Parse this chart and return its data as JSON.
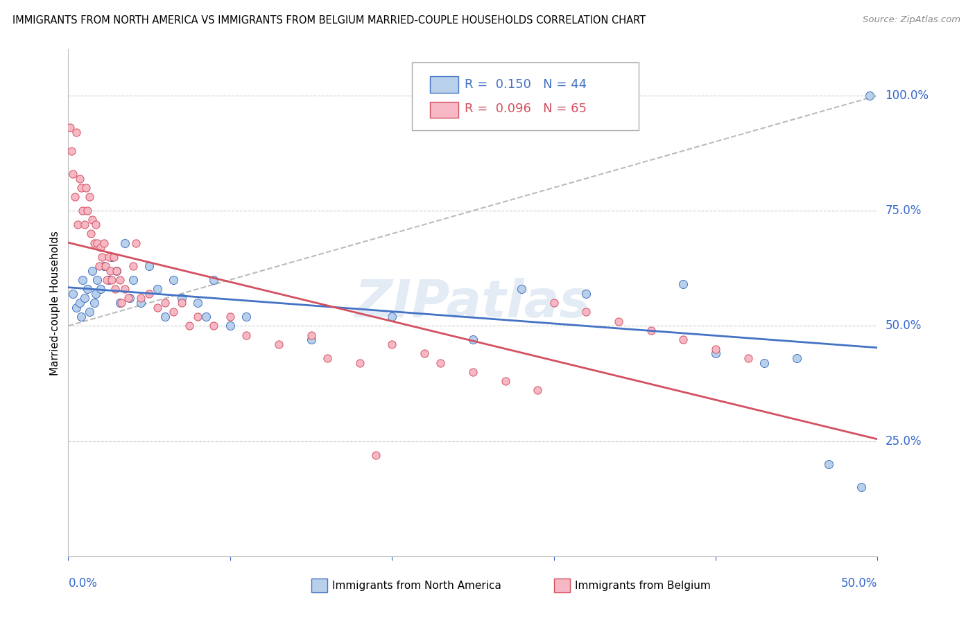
{
  "title": "IMMIGRANTS FROM NORTH AMERICA VS IMMIGRANTS FROM BELGIUM MARRIED-COUPLE HOUSEHOLDS CORRELATION CHART",
  "source": "Source: ZipAtlas.com",
  "ylabel": "Married-couple Households",
  "yticks": [
    "100.0%",
    "75.0%",
    "50.0%",
    "25.0%"
  ],
  "ytick_vals": [
    1.0,
    0.75,
    0.5,
    0.25
  ],
  "xlim": [
    0.0,
    0.5
  ],
  "ylim": [
    0.0,
    1.1
  ],
  "blue_fill": "#b8d0ea",
  "blue_edge": "#4472c4",
  "pink_fill": "#f5b8c4",
  "pink_edge": "#d45060",
  "blue_line_color": "#4472c4",
  "pink_line_color": "#d45060",
  "dash_line_color": "#bbbbbb",
  "axis_color": "#3366cc",
  "grid_color": "#cccccc",
  "legend_R_blue": "0.150",
  "legend_N_blue": "44",
  "legend_R_pink": "0.096",
  "legend_N_pink": "65",
  "blue_x": [
    0.003,
    0.005,
    0.007,
    0.008,
    0.009,
    0.01,
    0.012,
    0.013,
    0.015,
    0.016,
    0.017,
    0.018,
    0.02,
    0.022,
    0.025,
    0.027,
    0.03,
    0.032,
    0.035,
    0.038,
    0.04,
    0.045,
    0.05,
    0.055,
    0.06,
    0.065,
    0.07,
    0.08,
    0.085,
    0.09,
    0.1,
    0.11,
    0.15,
    0.2,
    0.25,
    0.28,
    0.32,
    0.38,
    0.4,
    0.43,
    0.45,
    0.47,
    0.49,
    0.495
  ],
  "blue_y": [
    0.57,
    0.54,
    0.55,
    0.52,
    0.6,
    0.56,
    0.58,
    0.53,
    0.62,
    0.55,
    0.57,
    0.6,
    0.58,
    0.63,
    0.6,
    0.65,
    0.62,
    0.55,
    0.68,
    0.56,
    0.6,
    0.55,
    0.63,
    0.58,
    0.52,
    0.6,
    0.56,
    0.55,
    0.52,
    0.6,
    0.5,
    0.52,
    0.47,
    0.52,
    0.47,
    0.58,
    0.57,
    0.59,
    0.44,
    0.42,
    0.43,
    0.2,
    0.15,
    1.0
  ],
  "pink_x": [
    0.001,
    0.002,
    0.003,
    0.004,
    0.005,
    0.006,
    0.007,
    0.008,
    0.009,
    0.01,
    0.011,
    0.012,
    0.013,
    0.014,
    0.015,
    0.016,
    0.017,
    0.018,
    0.019,
    0.02,
    0.021,
    0.022,
    0.023,
    0.024,
    0.025,
    0.026,
    0.027,
    0.028,
    0.029,
    0.03,
    0.032,
    0.033,
    0.035,
    0.037,
    0.04,
    0.042,
    0.045,
    0.05,
    0.055,
    0.06,
    0.065,
    0.07,
    0.075,
    0.08,
    0.09,
    0.1,
    0.11,
    0.13,
    0.15,
    0.16,
    0.18,
    0.19,
    0.2,
    0.22,
    0.23,
    0.25,
    0.27,
    0.29,
    0.3,
    0.32,
    0.34,
    0.36,
    0.38,
    0.4,
    0.42
  ],
  "pink_y": [
    0.93,
    0.88,
    0.83,
    0.78,
    0.92,
    0.72,
    0.82,
    0.8,
    0.75,
    0.72,
    0.8,
    0.75,
    0.78,
    0.7,
    0.73,
    0.68,
    0.72,
    0.68,
    0.63,
    0.67,
    0.65,
    0.68,
    0.63,
    0.6,
    0.65,
    0.62,
    0.6,
    0.65,
    0.58,
    0.62,
    0.6,
    0.55,
    0.58,
    0.56,
    0.63,
    0.68,
    0.56,
    0.57,
    0.54,
    0.55,
    0.53,
    0.55,
    0.5,
    0.52,
    0.5,
    0.52,
    0.48,
    0.46,
    0.48,
    0.43,
    0.42,
    0.22,
    0.46,
    0.44,
    0.42,
    0.4,
    0.38,
    0.36,
    0.55,
    0.53,
    0.51,
    0.49,
    0.47,
    0.45,
    0.43
  ]
}
